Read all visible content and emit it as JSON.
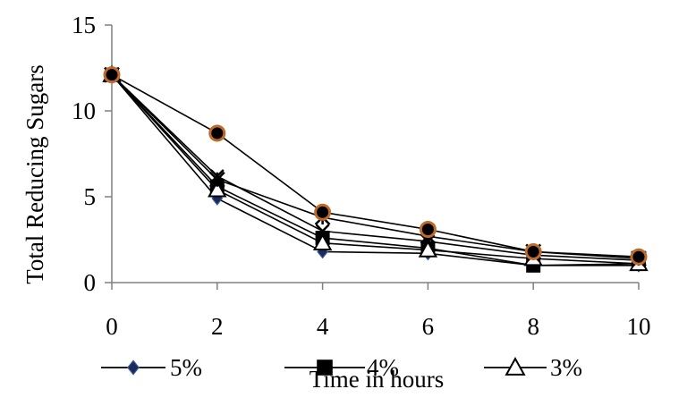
{
  "chart_data": {
    "type": "line",
    "xlabel": "Time in hours",
    "ylabel": "Total Reducing Sugars",
    "xlim": [
      0,
      10
    ],
    "ylim": [
      0,
      15
    ],
    "x_ticks": [
      0,
      2,
      4,
      6,
      8,
      10
    ],
    "y_ticks": [
      0,
      5,
      10,
      15
    ],
    "grid": false,
    "legend_position": "bottom",
    "x": [
      0,
      2,
      4,
      6,
      8,
      10
    ],
    "series": [
      {
        "name": "5%",
        "marker": "diamond",
        "color": "#1a2a5a",
        "values": [
          12.1,
          4.9,
          1.8,
          1.7,
          1.0,
          1.0
        ]
      },
      {
        "name": "4%",
        "marker": "square",
        "color": "#000000",
        "values": [
          12.1,
          5.6,
          2.6,
          2.0,
          1.0,
          1.1
        ]
      },
      {
        "name": "3%",
        "marker": "triangle",
        "color": "#000000",
        "values": [
          12.1,
          5.4,
          2.3,
          1.9,
          1.4,
          1.1
        ]
      },
      {
        "name": "",
        "marker": "x",
        "color": "#000000",
        "values": [
          12.1,
          6.2,
          3.0,
          2.4,
          1.6,
          1.3
        ]
      },
      {
        "name": "",
        "marker": "star",
        "color": "#000000",
        "values": [
          12.1,
          6.0,
          3.8,
          2.7,
          1.8,
          1.4
        ]
      },
      {
        "name": "",
        "marker": "circle",
        "color": "#c06a2a",
        "values": [
          12.1,
          8.7,
          4.1,
          3.1,
          1.8,
          1.5
        ]
      }
    ]
  }
}
